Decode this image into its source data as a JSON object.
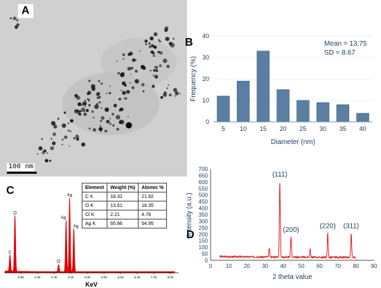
{
  "panels": {
    "a": "A",
    "b": "B",
    "c": "C",
    "d": "D"
  },
  "tem": {
    "scale_label": "100 nm"
  },
  "chart_data": [
    {
      "type": "bar",
      "panel": "B",
      "categories": [
        "5",
        "10",
        "15",
        "20",
        "25",
        "30",
        "35",
        "40"
      ],
      "values": [
        12,
        19,
        33,
        15,
        10,
        9,
        8,
        4
      ],
      "xlabel": "Diameter (nm)",
      "ylabel": "Frequency (%)",
      "ylim": [
        0,
        40
      ],
      "yticks": [
        0,
        10,
        20,
        30,
        40
      ],
      "annotations": [
        "Mean = 13.75",
        "SD = 8.67"
      ],
      "color": "#5b7ea3"
    },
    {
      "type": "line",
      "panel": "C",
      "xlabel": "KeV",
      "xticks": [
        "0.80",
        "1.60",
        "2.40",
        "3.20",
        "4.00",
        "4.80",
        "5.60",
        "6.40",
        "7.20",
        "8.00"
      ],
      "peaks": [
        {
          "label": "C",
          "x": 0.28,
          "y": 0.18
        },
        {
          "label": "O",
          "x": 0.52,
          "y": 0.62
        },
        {
          "label": "Cl",
          "x": 2.62,
          "y": 0.08
        },
        {
          "label": "Ag",
          "x": 2.98,
          "y": 0.57
        },
        {
          "label": "Ag",
          "x": 3.15,
          "y": 0.82
        },
        {
          "label": "Ag",
          "x": 3.35,
          "y": 0.48
        }
      ],
      "color": "#d40000"
    },
    {
      "type": "line",
      "panel": "D",
      "xlabel": "2 theta value",
      "ylabel": "Intensity (a.u.)",
      "xlim": [
        0,
        90
      ],
      "ylim": [
        0,
        700
      ],
      "xticks": [
        0,
        10,
        20,
        30,
        40,
        50,
        60,
        70,
        80,
        90
      ],
      "yticks": [
        0,
        50,
        100,
        150,
        200,
        250,
        300,
        350,
        400,
        450,
        500,
        550,
        600,
        650,
        700
      ],
      "peaks": [
        {
          "label": "",
          "x": 32.3,
          "y": 95
        },
        {
          "label": "(111)",
          "x": 38.1,
          "y": 610
        },
        {
          "label": "(200)",
          "x": 44.3,
          "y": 185
        },
        {
          "label": "",
          "x": 54.8,
          "y": 95
        },
        {
          "label": "(220)",
          "x": 64.5,
          "y": 215
        },
        {
          "label": "(311)",
          "x": 77.4,
          "y": 215
        }
      ],
      "baseline": 28,
      "color": "#e02020"
    }
  ],
  "eds_table": {
    "headers": [
      "Element",
      "Weight (%)",
      "Atomic %"
    ],
    "rows": [
      [
        "C K",
        "18.32",
        "21.92"
      ],
      [
        "O K",
        "13.61",
        "18.35"
      ],
      [
        "Cl K",
        "2.21",
        "4.78"
      ],
      [
        "Ag K",
        "65.86",
        "54.95"
      ]
    ]
  }
}
